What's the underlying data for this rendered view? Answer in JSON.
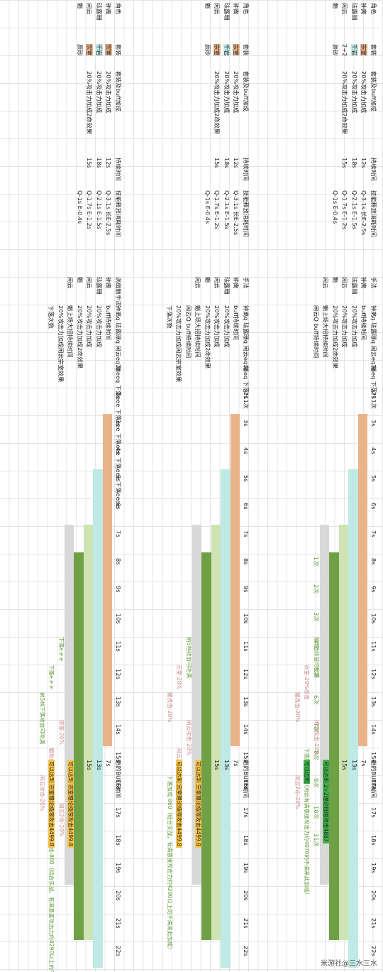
{
  "colors": {
    "orange": "#e9b48a",
    "green_dark": "#70a045",
    "green_light": "#cfe3b4",
    "cyan": "#bfe9e4",
    "gray": "#d8d8d8",
    "yellow": "#f7c64d",
    "bright_green": "#3fb24a",
    "pink_text": "#c98a8a",
    "green_text": "#5f9a3a"
  },
  "watermark": "米游社@三水三水",
  "panels": [
    {
      "header": {
        "col1": "角色",
        "col2": "套装",
        "col3": "套装及buff加成",
        "col4": "持续时间",
        "col5": "技能释放消耗时间"
      },
      "rows": [
        {
          "char": "钟离",
          "set": "宗室",
          "buff": "20%攻击力加成",
          "dur": "12s",
          "cost": "Q-3.1s 长E-2.5s"
        },
        {
          "char": "珐露珊",
          "set": "千岩",
          "buff": "20%攻击力加成",
          "dur": "18s",
          "cost": "Q-2.1s E-1.5s"
        },
        {
          "char": "闲云",
          "set": "2+2",
          "buff": "20%攻击力加成2命效果",
          "dur": "15s",
          "cost": "Q-1.7s E-1.2s"
        },
        {
          "char": "魈",
          "set": "辰砂",
          "buff": "",
          "dur": "",
          "cost": "Q-1s E-0.4s"
        }
      ],
      "timeline_header": {
        "c1": "手法",
        "c2": "角色",
        "c3": "钟离q 珐露珊q 闲云eq 魈eq 下落*11次"
      },
      "timeline_rows": [
        "钟离",
        "珐露珊",
        "闲云",
        "魈",
        "闲云"
      ],
      "timeline_labels": [
        "buff持续时间",
        "20%攻击力加成",
        "20%攻击力加成",
        "20%攻击力加成2命效果",
        "魈上场大招持续时间",
        "闲云Q buff持续时间"
      ],
      "seconds": [
        "1s",
        "2s",
        "3s",
        "4s",
        "5s",
        "6s",
        "7s",
        "8s",
        "9s",
        "10s",
        "11s",
        "12s",
        "13s",
        "14s",
        "15s",
        "16s",
        "17s",
        "18s",
        "19s",
        "20s",
        "21s",
        "22s"
      ],
      "counts": [
        "1次",
        "2次",
        "3次",
        "4次",
        "5次",
        "6次",
        "7次",
        "8次",
        "9次",
        "10次",
        "11次"
      ],
      "notes": [
        "前5档收益可吃满",
        "宗室-20%攻击",
        "魈攻击-20%",
        "闲云攻击-20%",
        "下落加成-860（闲云有满意度攻击力约4070的不满来此加成）",
        "闲云2命-20%"
      ],
      "side": {
        "title": "魈的BUFF时间",
        "v1": "7s",
        "v2": "13s",
        "v3": "15s",
        "result": "可以达到 2+2理论极限攻击4887",
        "final": "可以达到"
      }
    },
    {
      "header": {
        "col1": "角色",
        "col2": "套装",
        "col3": "套装及buff加成",
        "col4": "持续时间",
        "col5": "技能释放消耗时间"
      },
      "rows": [
        {
          "char": "钟离",
          "set": "宗室",
          "buff": "20%攻击力加成",
          "dur": "12s",
          "cost": "Q-3.1s 长E-2.5s"
        },
        {
          "char": "珐露珊",
          "set": "千岩",
          "buff": "20%攻击力加成",
          "dur": "18s",
          "cost": "Q-2.1s E-1.5s"
        },
        {
          "char": "闲云",
          "set": "宗室",
          "buff": "20%攻击力加成2命效果",
          "dur": "15s",
          "cost": "Q-1.7s E-1.2s"
        },
        {
          "char": "魈",
          "set": "辰砂",
          "buff": "",
          "dur": "",
          "cost": "Q-1s E-0.4s"
        }
      ],
      "timeline_header": {
        "c1": "手法",
        "c2": "角色",
        "c3": "钟离q 珐露珊q 闲云eq 魈eq 下落*11次"
      },
      "timeline_rows": [
        "钟离",
        "珐露珊",
        "闲云",
        "魈",
        "闲云"
      ],
      "timeline_labels": [
        "buff持续时间",
        "20%攻击力加成",
        "20%攻击力加成",
        "20%攻击力加成2命效果",
        "魈上场大招持续时间",
        "闲云Q buff持续时间",
        "20%攻击力加成闲云宗室效果",
        "下落次数"
      ],
      "notes": [
        "前5档收益可吃满",
        "宗室-20%",
        "魈攻击-20%",
        "闲云攻击-20%",
        "闲云2命-20%",
        "下落加成-860（结合实战，有满意度攻击力约4290以上的不满来此加成）"
      ],
      "side": {
        "title": "魈的BUFF时间",
        "v1": "7s",
        "v2": "13s",
        "v3": "15s",
        "result": "可以达到 宗室理论极限攻击4499.8",
        "final": "可以达到 宗室理论极限攻击4499.8"
      }
    },
    {
      "header": {
        "col1": "角色",
        "col2": "套装",
        "col3": "套装及buff加成",
        "col4": "持续时间",
        "col5": "技能释放消耗时间"
      },
      "rows": [
        {
          "char": "钟离",
          "set": "宗室",
          "buff": "20%攻击力加成",
          "dur": "12s",
          "cost": "Q-3.1s 长E-2.5s"
        },
        {
          "char": "珐露珊",
          "set": "千岩",
          "buff": "20%攻击力加成",
          "dur": "18s",
          "cost": "Q-2.1s E-1.5s"
        },
        {
          "char": "闲云",
          "set": "宗室",
          "buff": "20%攻击力加成2命效果",
          "dur": "15s",
          "cost": "Q-1.7s E-1.2s"
        },
        {
          "char": "魈",
          "set": "辰砂",
          "buff": "",
          "dur": "",
          "cost": "Q-1s E-0.4s"
        }
      ],
      "timeline_header": {
        "c1": "涡扇魈手法",
        "c2": "角色",
        "c3": "钟离q 珐露珊q 闲云eq 魈eeq 下落eee 下落eee 下落eee 下落eee 下落eeee"
      },
      "timeline_rows": [
        "钟离",
        "珐露珊",
        "闲云",
        "魈",
        "闲云"
      ],
      "timeline_labels": [
        "buff持续时间",
        "20%攻击力加成",
        "20%攻击力加成",
        "20%攻击力加成2命效果",
        "魈上场大招持续时间",
        "20%攻击力加成闲云宗室效果",
        "下落次数"
      ],
      "notes": [
        "下落e e e",
        "下落e e e",
        "前5档下落收益可吃满",
        "宗室-20%",
        "魈攻击-20%",
        "闲云攻击-20%",
        "闲云2命-20%",
        "下落加成-860（结合实战，有满意度攻击力约4290以上的不满来此加成）"
      ],
      "side": {
        "title": "魈的BUFF时间",
        "v1": "7s",
        "v2": "13s",
        "v3": "15s",
        "result": "可以达到 宗室理论极限攻击4499.8",
        "final": "可以达到 宗室理论极限攻击4499.8"
      }
    }
  ]
}
